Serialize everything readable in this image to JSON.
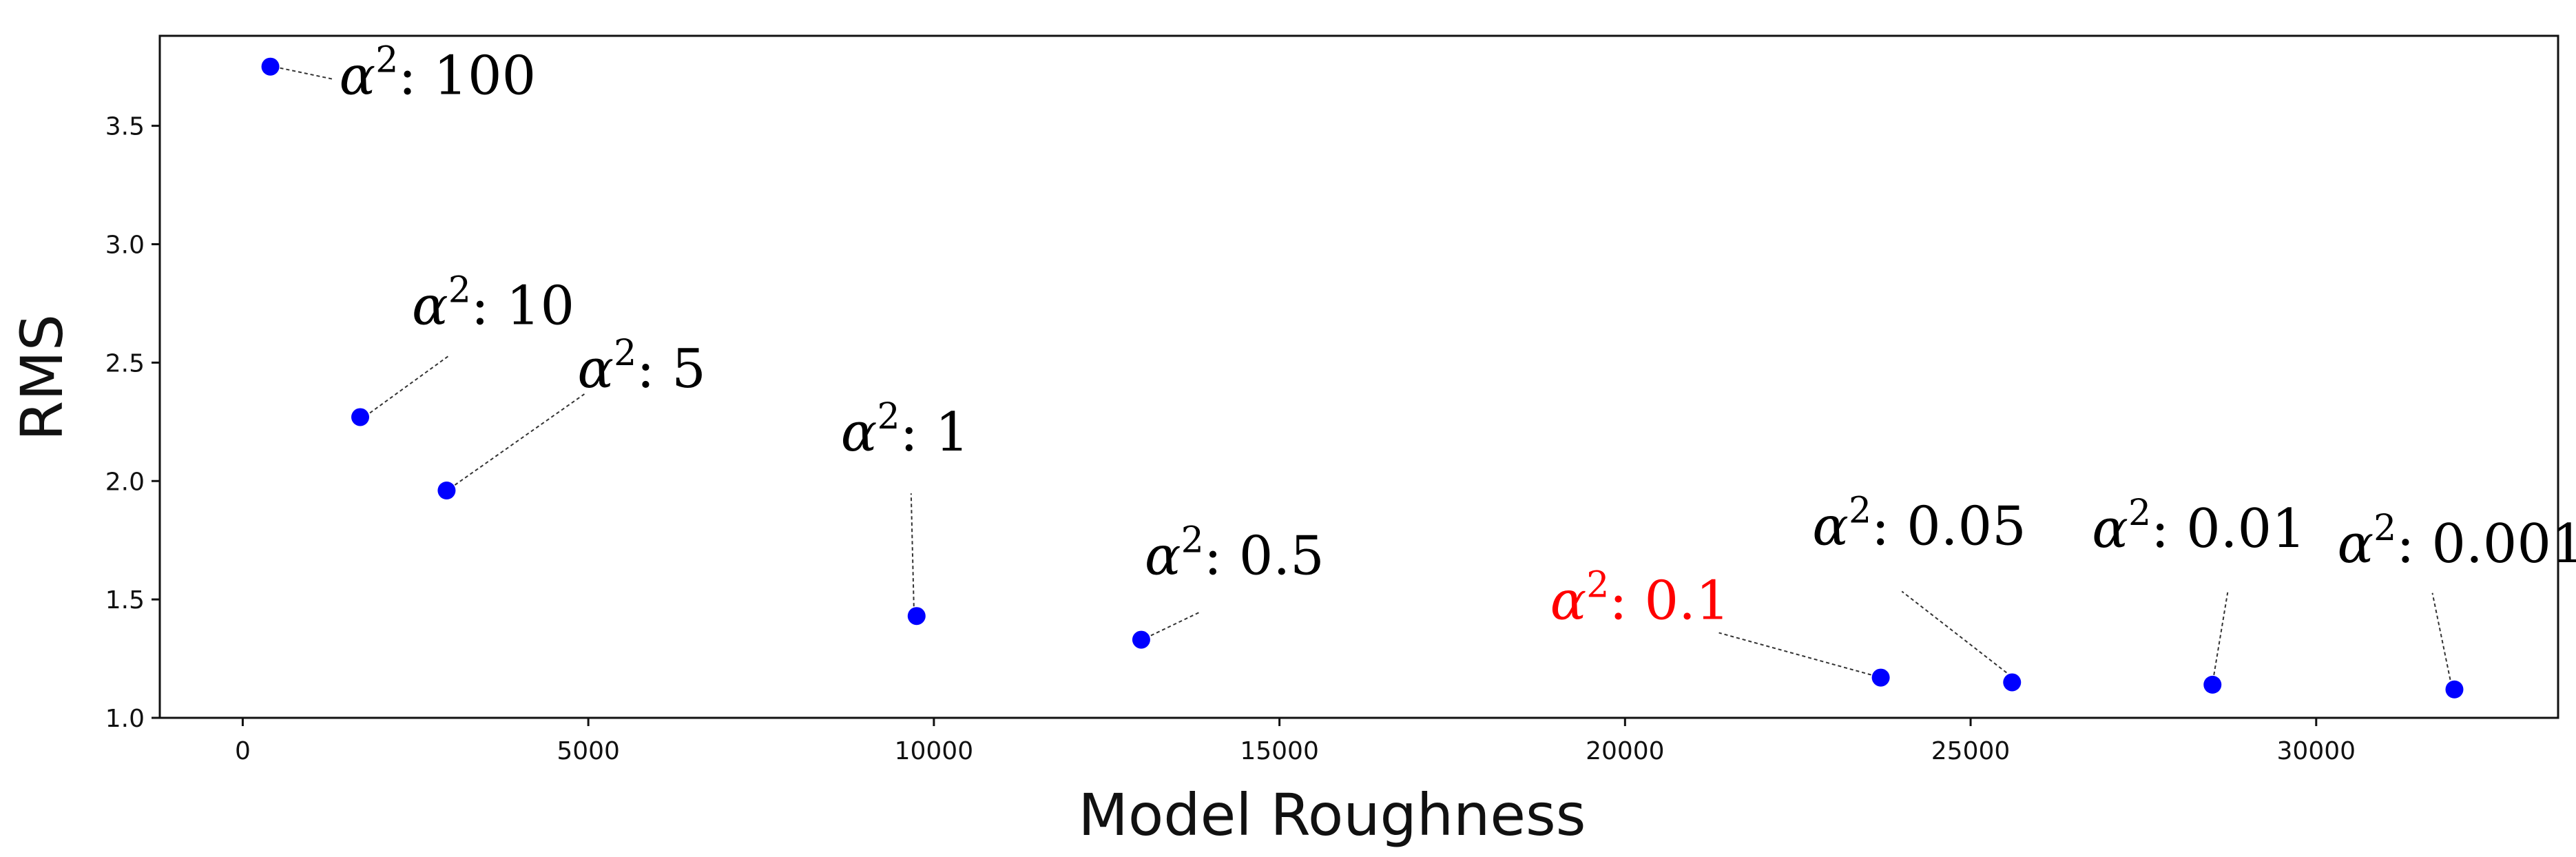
{
  "chart_data": {
    "type": "scatter",
    "xlabel": "Model Roughness",
    "ylabel": "RMS",
    "xlim": [
      -1200,
      33500
    ],
    "ylim": [
      1.0,
      3.88
    ],
    "xticks": [
      0,
      5000,
      10000,
      15000,
      20000,
      25000,
      30000
    ],
    "yticks": [
      1.0,
      1.5,
      2.0,
      2.5,
      3.0,
      3.5
    ],
    "xtick_labels": [
      "0",
      "5000",
      "10000",
      "15000",
      "20000",
      "25000",
      "30000"
    ],
    "ytick_labels": [
      "1.0",
      "1.5",
      "2.0",
      "2.5",
      "3.0",
      "3.5"
    ],
    "marker_color": "#0000ff",
    "highlight_color": "#ff0000",
    "points": [
      {
        "x": 400,
        "y": 3.75,
        "prefix": "α",
        "power": "2",
        "label": ": 100",
        "highlight": false
      },
      {
        "x": 1700,
        "y": 2.27,
        "prefix": "α",
        "power": "2",
        "label": ": 10",
        "highlight": false
      },
      {
        "x": 2950,
        "y": 1.96,
        "prefix": "α",
        "power": "2",
        "label": ": 5",
        "highlight": false
      },
      {
        "x": 9750,
        "y": 1.43,
        "prefix": "α",
        "power": "2",
        "label": ": 1",
        "highlight": false
      },
      {
        "x": 13000,
        "y": 1.33,
        "prefix": "α",
        "power": "2",
        "label": ": 0.5",
        "highlight": false
      },
      {
        "x": 23700,
        "y": 1.17,
        "prefix": "α",
        "power": "2",
        "label": ": 0.1",
        "highlight": true
      },
      {
        "x": 25600,
        "y": 1.15,
        "prefix": "α",
        "power": "2",
        "label": ": 0.05",
        "highlight": false
      },
      {
        "x": 28500,
        "y": 1.14,
        "prefix": "α",
        "power": "2",
        "label": ": 0.01",
        "highlight": false
      },
      {
        "x": 32000,
        "y": 1.12,
        "prefix": "α",
        "power": "2",
        "label": ": 0.001",
        "highlight": false
      }
    ]
  }
}
